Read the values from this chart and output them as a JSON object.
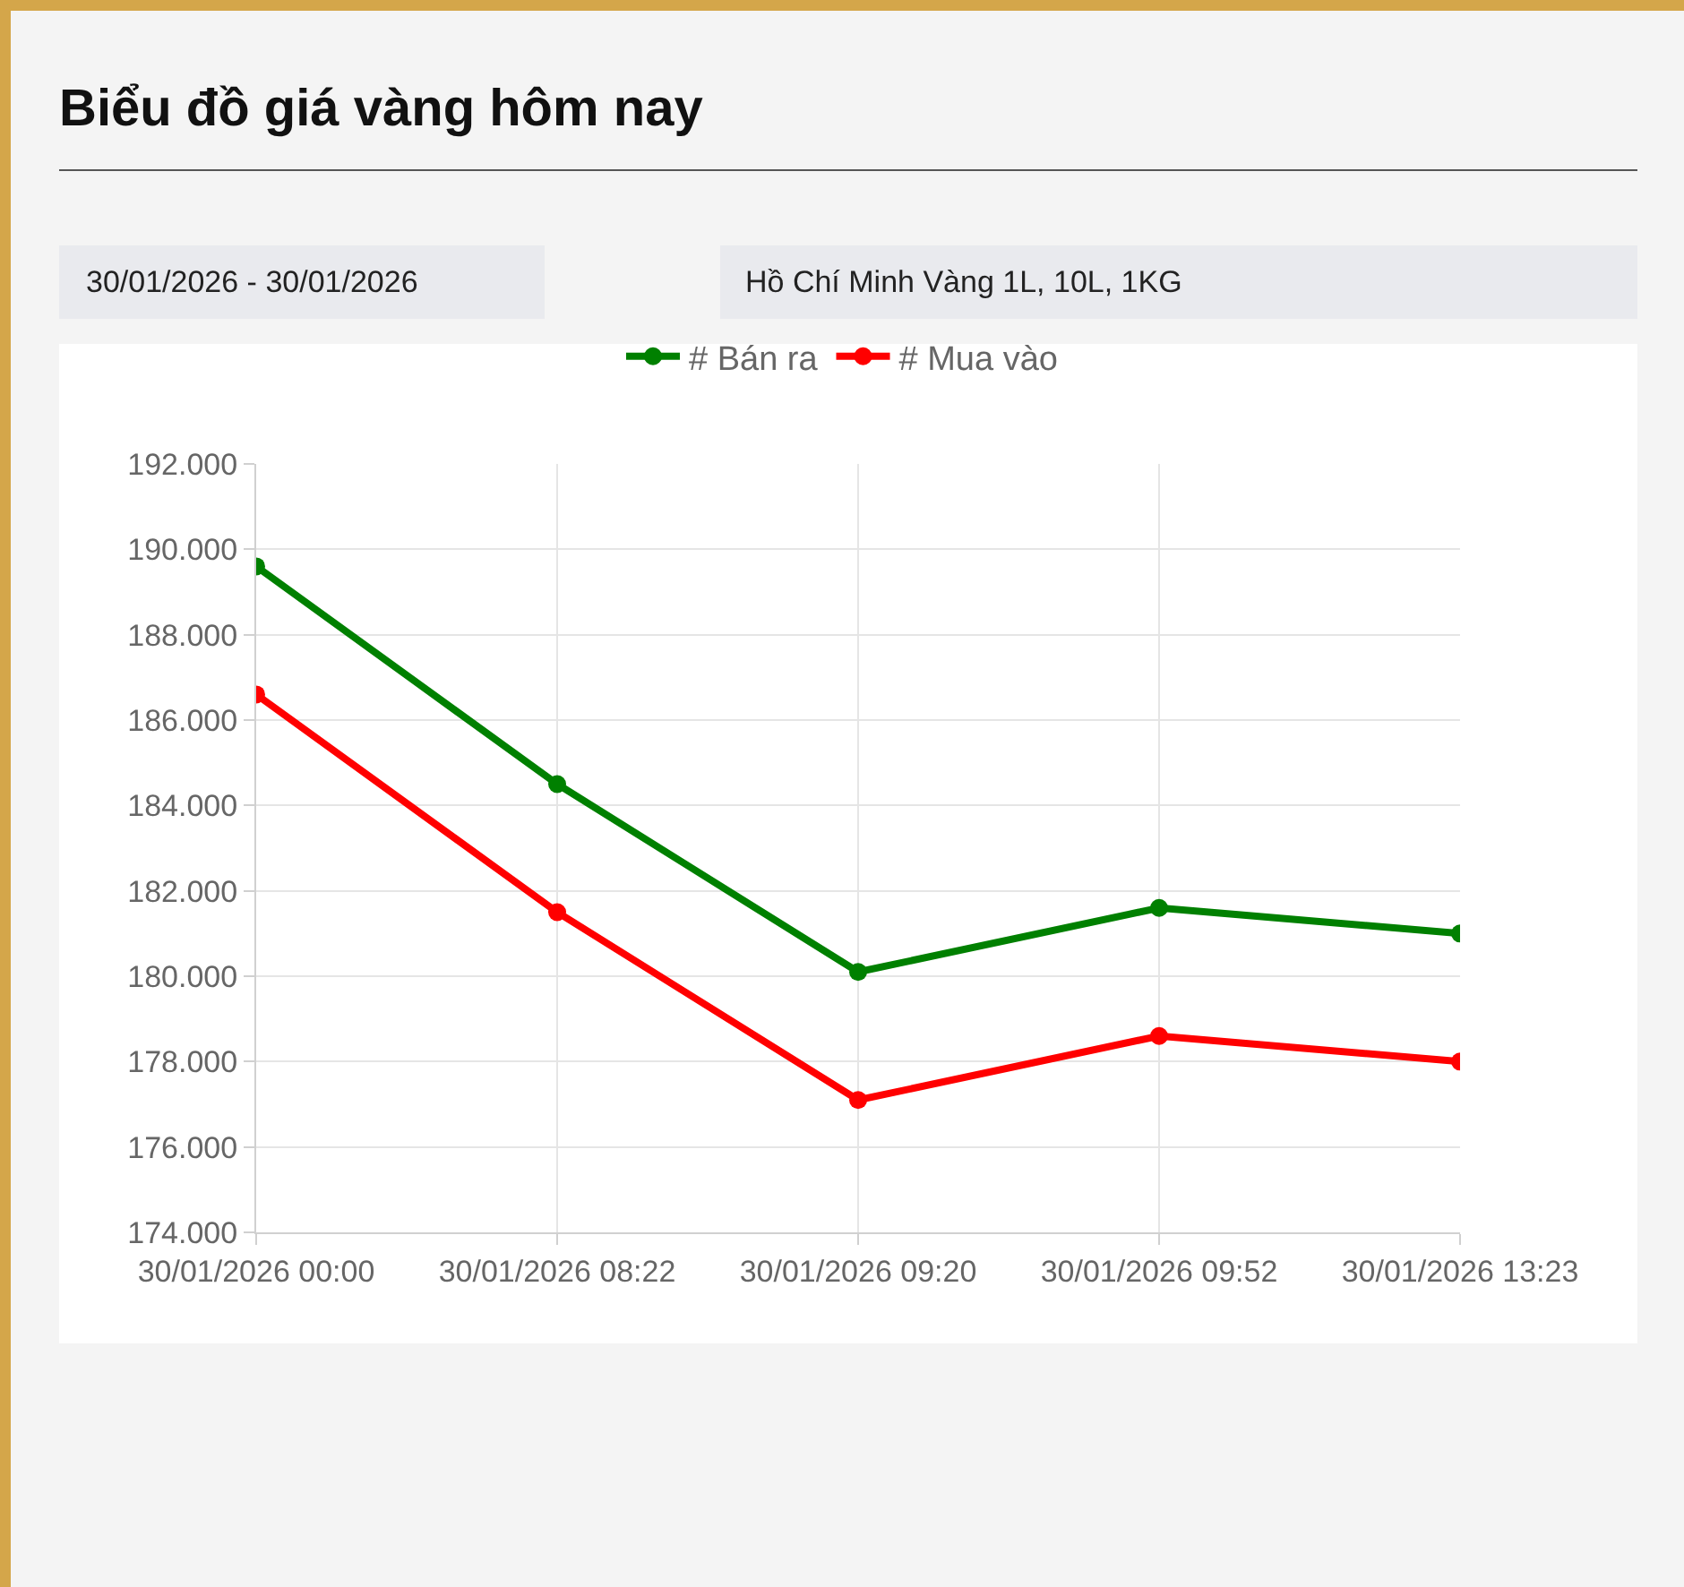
{
  "chart_data": {
    "type": "line",
    "title": "Biểu đồ giá vàng hôm nay",
    "annotations": [
      "30/01/2026 - 30/01/2026",
      "Hồ Chí Minh Vàng 1L, 10L, 1KG"
    ],
    "categories": [
      "30/01/2026 00:00",
      "30/01/2026 08:22",
      "30/01/2026 09:20",
      "30/01/2026 09:52",
      "30/01/2026 13:23"
    ],
    "series": [
      {
        "name": "# Bán ra",
        "color": "#008000",
        "values": [
          189600,
          184500,
          180100,
          181600,
          181000
        ]
      },
      {
        "name": "# Mua vào",
        "color": "#ff0000",
        "values": [
          186600,
          181500,
          177100,
          178600,
          178000
        ]
      }
    ],
    "ylim": [
      174000,
      192000
    ],
    "yticks": [
      {
        "value": 174000,
        "label": "174.000"
      },
      {
        "value": 176000,
        "label": "176.000"
      },
      {
        "value": 178000,
        "label": "178.000"
      },
      {
        "value": 180000,
        "label": "180.000"
      },
      {
        "value": 182000,
        "label": "182.000"
      },
      {
        "value": 184000,
        "label": "184.000"
      },
      {
        "value": 186000,
        "label": "186.000"
      },
      {
        "value": 188000,
        "label": "188.000"
      },
      {
        "value": 190000,
        "label": "190.000"
      },
      {
        "value": 192000,
        "label": "192.000"
      }
    ],
    "grid": true,
    "legend": "top",
    "marker": "circle",
    "line_style": "solid"
  }
}
